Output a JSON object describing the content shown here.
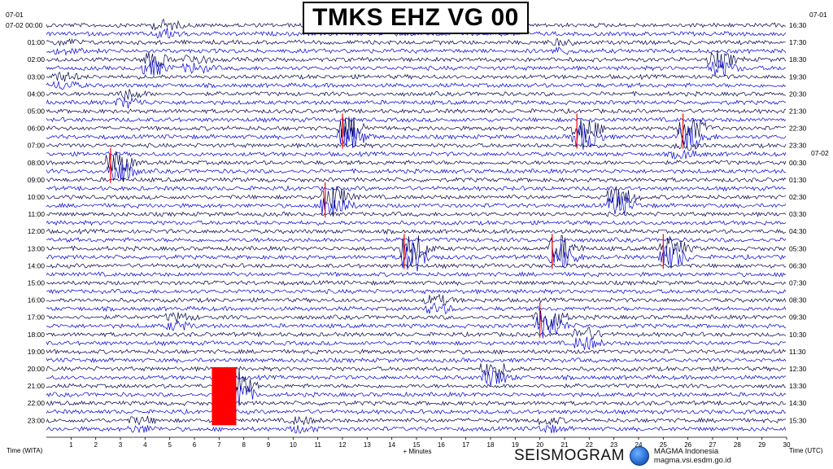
{
  "header": {
    "title": "TMKS EHZ VG 00"
  },
  "chart_data": {
    "type": "helicorder",
    "title": "TMKS EHZ VG 00",
    "xlabel": "+ Minutes",
    "x_ticks": [
      1,
      2,
      3,
      4,
      5,
      6,
      7,
      8,
      9,
      10,
      11,
      12,
      13,
      14,
      15,
      16,
      17,
      18,
      19,
      20,
      21,
      22,
      23,
      24,
      25,
      26,
      27,
      28,
      29,
      30
    ],
    "xlim": [
      0,
      30
    ],
    "left_axis_label": "Time (WITA)",
    "right_axis_label": "Time (UTC)",
    "left_dates": [
      "07-01",
      "07-02 00:00"
    ],
    "right_dates": [
      "07-01",
      "07-02"
    ],
    "left_hours": [
      "01:00",
      "02:00",
      "03:00",
      "04:00",
      "05:00",
      "06:00",
      "07:00",
      "08:00",
      "09:00",
      "10:00",
      "11:00",
      "12:00",
      "13:00",
      "14:00",
      "15:00",
      "16:00",
      "17:00",
      "18:00",
      "19:00",
      "20:00",
      "21:00",
      "22:00",
      "23:00"
    ],
    "right_hours": [
      "16:30",
      "17:30",
      "18:30",
      "19:30",
      "20:30",
      "21:30",
      "22:30",
      "23:30",
      "00:30",
      "01:30",
      "02:30",
      "03:30",
      "04:30",
      "05:30",
      "06:30",
      "07:30",
      "08:30",
      "09:30",
      "10:30",
      "11:30",
      "12:30",
      "13:30",
      "14:30",
      "15:30"
    ],
    "traces_per_hour": 2,
    "trace_colors": [
      "#00004a",
      "#0000d8"
    ],
    "clip_color": "#ff0000",
    "events": [
      {
        "hour_row": 0,
        "minute": 4.5,
        "amplitude": 0.6
      },
      {
        "hour_row": 1,
        "minute": 0.5,
        "amplitude": 0.3
      },
      {
        "hour_row": 1,
        "minute": 20.5,
        "amplitude": 0.3
      },
      {
        "hour_row": 2,
        "minute": 4.0,
        "amplitude": 0.9
      },
      {
        "hour_row": 2,
        "minute": 5.7,
        "amplitude": 0.6
      },
      {
        "hour_row": 2,
        "minute": 27.0,
        "amplitude": 1.0
      },
      {
        "hour_row": 3,
        "minute": 0.4,
        "amplitude": 0.5
      },
      {
        "hour_row": 4,
        "minute": 3.0,
        "amplitude": 0.6
      },
      {
        "hour_row": 6,
        "minute": 12.0,
        "amplitude": 1.5
      },
      {
        "hour_row": 6,
        "minute": 21.5,
        "amplitude": 1.6
      },
      {
        "hour_row": 6,
        "minute": 25.8,
        "amplitude": 1.5
      },
      {
        "hour_row": 7,
        "minute": 25.5,
        "amplitude": 0.5
      },
      {
        "hour_row": 8,
        "minute": 2.6,
        "amplitude": 1.5
      },
      {
        "hour_row": 10,
        "minute": 11.3,
        "amplitude": 1.7
      },
      {
        "hour_row": 10,
        "minute": 22.9,
        "amplitude": 1.3
      },
      {
        "hour_row": 13,
        "minute": 14.5,
        "amplitude": 2.0
      },
      {
        "hour_row": 13,
        "minute": 20.5,
        "amplitude": 1.7
      },
      {
        "hour_row": 13,
        "minute": 25.0,
        "amplitude": 1.5
      },
      {
        "hour_row": 16,
        "minute": 15.5,
        "amplitude": 0.6
      },
      {
        "hour_row": 17,
        "minute": 20.0,
        "amplitude": 1.8
      },
      {
        "hour_row": 17,
        "minute": 5.0,
        "amplitude": 0.5
      },
      {
        "hour_row": 18,
        "minute": 21.5,
        "amplitude": 0.8
      },
      {
        "hour_row": 20,
        "minute": 17.8,
        "amplitude": 1.0
      },
      {
        "hour_row": 21,
        "minute": 7.3,
        "amplitude": 2.4,
        "clipped": true
      },
      {
        "hour_row": 23,
        "minute": 3.5,
        "amplitude": 0.4
      },
      {
        "hour_row": 23,
        "minute": 10.0,
        "amplitude": 0.4
      },
      {
        "hour_row": 23,
        "minute": 20.0,
        "amplitude": 0.4
      }
    ]
  },
  "footer": {
    "brand": "SEISMOGRAM",
    "org": "MAGMA Indonesia",
    "url": "magma.vsi.esdm.go.id"
  }
}
